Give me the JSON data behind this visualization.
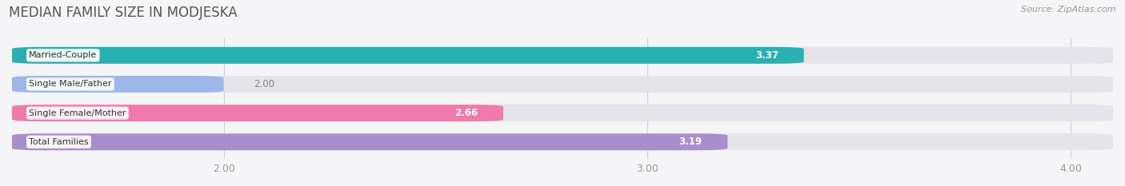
{
  "title": "MEDIAN FAMILY SIZE IN MODJESKA",
  "source": "Source: ZipAtlas.com",
  "categories": [
    "Married-Couple",
    "Single Male/Father",
    "Single Female/Mother",
    "Total Families"
  ],
  "values": [
    3.37,
    2.0,
    2.66,
    3.19
  ],
  "bar_colors": [
    "#2ab0b0",
    "#9db8e8",
    "#f07aaa",
    "#aa8ecc"
  ],
  "bar_bg_color": "#e4e4ea",
  "value_label_inside_color": "#ffffff",
  "value_label_outside_color": "#888888",
  "xlim": [
    1.5,
    4.1
  ],
  "xticks": [
    2.0,
    3.0,
    4.0
  ],
  "background_color": "#f5f5f7",
  "title_fontsize": 12,
  "bar_height": 0.58,
  "fig_width": 14.06,
  "fig_height": 2.33,
  "value_inside_threshold": 2.5
}
